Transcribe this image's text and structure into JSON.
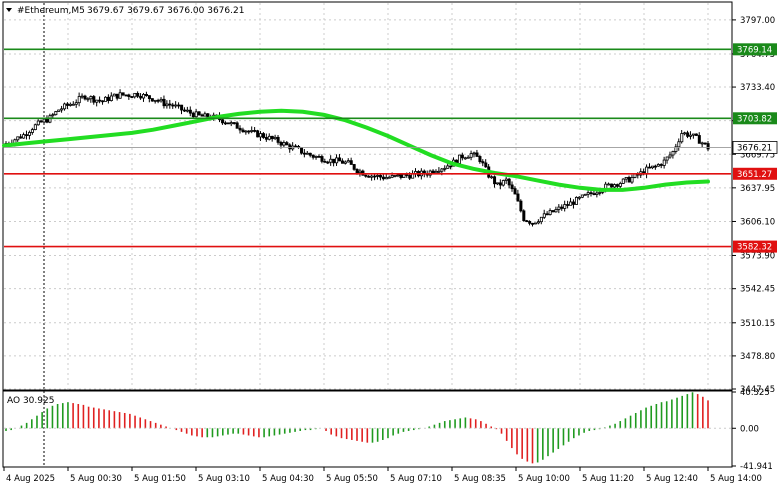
{
  "header": {
    "symbol": "#Ethereum,M5",
    "ohlc": "3679.67 3679.67 3676.00 3676.21",
    "menu_icon": "triangle-down-icon"
  },
  "colors": {
    "background": "#ffffff",
    "candle": "#000000",
    "ma_line": "#22dd22",
    "resistance": "#1a8a1a",
    "support": "#e01010",
    "ao_up": "#1f9a1f",
    "ao_down": "#e02020",
    "current_price_tag": "#ffffff",
    "grid": "#cccccc"
  },
  "chart_data": [
    {
      "type": "candlestick",
      "title": "#Ethereum,M5",
      "ylim": [
        3447.45,
        3813.0
      ],
      "y_ticks": [
        "3797.00",
        "3764.75",
        "3733.40",
        "3701.55",
        "3669.75",
        "3637.95",
        "3606.10",
        "3573.90",
        "3542.45",
        "3510.15",
        "3478.80",
        "3447.45"
      ],
      "x_ticks": [
        "4 Aug 2025",
        "5 Aug 00:30",
        "5 Aug 01:50",
        "5 Aug 03:10",
        "5 Aug 04:30",
        "5 Aug 05:50",
        "5 Aug 07:10",
        "5 Aug 08:35",
        "5 Aug 10:00",
        "5 Aug 11:20",
        "5 Aug 12:40",
        "5 Aug 14:00"
      ],
      "price_points": [
        3680,
        3684,
        3688,
        3695,
        3700,
        3704,
        3712,
        3716,
        3720,
        3725,
        3722,
        3720,
        3724,
        3726,
        3726,
        3727,
        3724,
        3722,
        3718,
        3716,
        3712,
        3709,
        3706,
        3705,
        3704,
        3701,
        3697,
        3694,
        3690,
        3688,
        3685,
        3682,
        3678,
        3675,
        3671,
        3668,
        3666,
        3664,
        3663,
        3661,
        3655,
        3651,
        3649,
        3648,
        3648,
        3649,
        3650,
        3651,
        3652,
        3656,
        3658,
        3662,
        3668,
        3670,
        3665,
        3650,
        3640,
        3645,
        3631,
        3609,
        3605,
        3610,
        3614,
        3618,
        3622,
        3626,
        3630,
        3634,
        3638,
        3641,
        3643,
        3646,
        3650,
        3655,
        3658,
        3663,
        3672,
        3690,
        3688,
        3683,
        3676
      ],
      "moving_average": [
        3678,
        3680,
        3682,
        3684,
        3686,
        3688,
        3690,
        3693,
        3697,
        3701,
        3705,
        3708,
        3710,
        3711,
        3710,
        3707,
        3702,
        3695,
        3687,
        3678,
        3669,
        3661,
        3656,
        3652,
        3649,
        3645,
        3641,
        3638,
        3636,
        3636,
        3638,
        3641,
        3643,
        3644
      ],
      "horizontal_levels": [
        {
          "value": 3769.14,
          "label": "3769.14",
          "kind": "resistance"
        },
        {
          "value": 3703.82,
          "label": "3703.82",
          "kind": "resistance"
        },
        {
          "value": 3651.27,
          "label": "3651.27",
          "kind": "support"
        },
        {
          "value": 3582.32,
          "label": "3582.32",
          "kind": "support"
        }
      ],
      "current_price": {
        "value": 3676.21,
        "label": "3676.21"
      },
      "grid": true
    },
    {
      "type": "bar",
      "title": "AO 30.925",
      "ylim": [
        -41.941,
        40.325
      ],
      "y_ticks": [
        "40.325",
        "0.00",
        "-41.941"
      ],
      "values": [
        -3,
        -2,
        0,
        3,
        6,
        10,
        14,
        18,
        22,
        25,
        27,
        28,
        29,
        28,
        27,
        26,
        24,
        23,
        22,
        21,
        20,
        19,
        18,
        17,
        16,
        14,
        12,
        10,
        8,
        6,
        4,
        2,
        0,
        -2,
        -4,
        -6,
        -8,
        -9,
        -10,
        -10,
        -10,
        -9,
        -8,
        -7,
        -6,
        -6,
        -7,
        -8,
        -9,
        -10,
        -10,
        -9,
        -8,
        -7,
        -6,
        -5,
        -4,
        -3,
        -2,
        -2,
        -1,
        0,
        -3,
        -7,
        -9,
        -11,
        -12,
        -13,
        -14,
        -15,
        -16,
        -16,
        -15,
        -13,
        -11,
        -8,
        -6,
        -4,
        -3,
        -2,
        -1,
        0,
        2,
        4,
        6,
        8,
        9,
        10,
        11,
        12,
        11,
        10,
        8,
        5,
        2,
        -1,
        -6,
        -14,
        -22,
        -29,
        -34,
        -37,
        -39,
        -38,
        -35,
        -31,
        -27,
        -23,
        -19,
        -15,
        -11,
        -8,
        -5,
        -3,
        -2,
        -1,
        1,
        3,
        5,
        8,
        11,
        14,
        17,
        20,
        23,
        25,
        27,
        29,
        30,
        32,
        34,
        36,
        38,
        40,
        38,
        35,
        31
      ]
    }
  ]
}
